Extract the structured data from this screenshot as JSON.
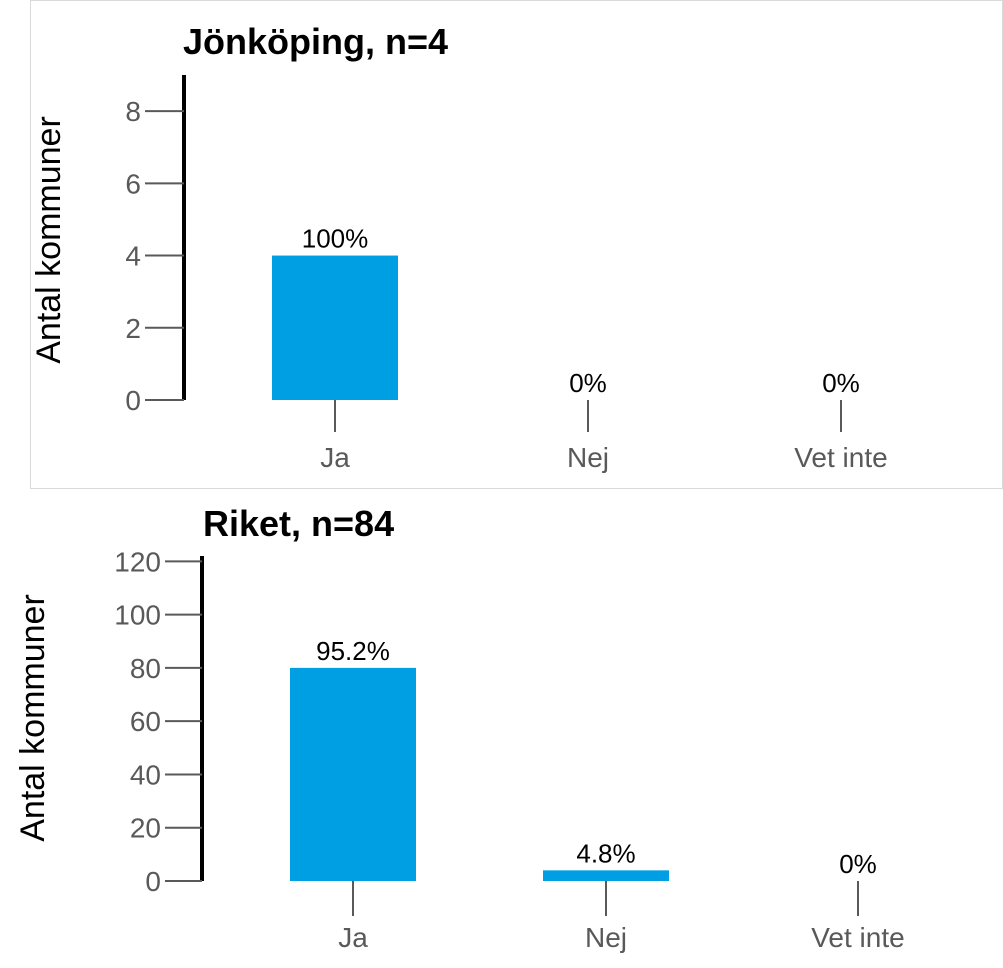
{
  "chart_data": [
    {
      "type": "bar",
      "title": "Jönköping, n=4",
      "ylabel": "Antal kommuner",
      "xlabel": "",
      "categories": [
        "Ja",
        "Nej",
        "Vet inte"
      ],
      "values": [
        4,
        0,
        0
      ],
      "data_labels": [
        "100%",
        "0%",
        "0%"
      ],
      "yticks": [
        "0",
        "2",
        "4",
        "6",
        "8"
      ],
      "ylim": [
        0,
        9
      ],
      "bar_color": "#009fe3",
      "grid": false,
      "legend": "none"
    },
    {
      "type": "bar",
      "title": "Riket, n=84",
      "ylabel": "Antal kommuner",
      "xlabel": "",
      "categories": [
        "Ja",
        "Nej",
        "Vet inte"
      ],
      "values": [
        80,
        4,
        0
      ],
      "data_labels": [
        "95.2%",
        "4.8%",
        "0%"
      ],
      "yticks": [
        "0",
        "20",
        "40",
        "60",
        "80",
        "100",
        "120"
      ],
      "ylim": [
        0,
        122
      ],
      "bar_color": "#009fe3",
      "grid": false,
      "legend": "none"
    }
  ]
}
